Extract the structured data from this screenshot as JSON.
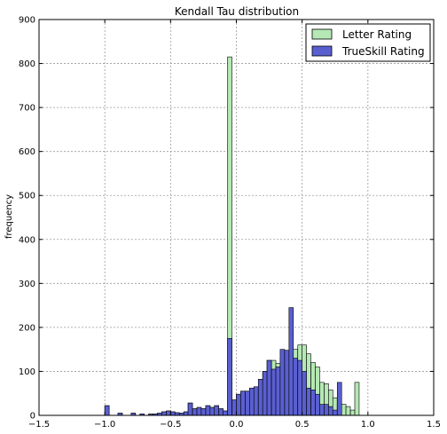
{
  "chart_data": {
    "type": "bar",
    "title": "Kendall Tau distribution",
    "xlabel": "",
    "ylabel": "frequency",
    "xlim": [
      -1.5,
      1.5
    ],
    "ylim": [
      0,
      900
    ],
    "bin_width": 0.0333,
    "x_ticks": [
      -1.5,
      -1.0,
      -0.5,
      0.0,
      0.5,
      1.0,
      1.5
    ],
    "x_tick_labels": [
      "−1.5",
      "−1.0",
      "−0.5",
      "0.0",
      "0.5",
      "1.0",
      "1.5"
    ],
    "y_ticks": [
      0,
      100,
      200,
      300,
      400,
      500,
      600,
      700,
      800,
      900
    ],
    "y_tick_labels": [
      "0",
      "100",
      "200",
      "300",
      "400",
      "500",
      "600",
      "700",
      "800",
      "900"
    ],
    "grid": true,
    "legend_position": "top-right",
    "colors": {
      "letter": "#b5e8b5",
      "trueskill": "#5a5fd0",
      "edge": "#000000"
    },
    "series": [
      {
        "name": "Letter Rating",
        "x": [
          -1.0,
          -0.9,
          -0.8,
          -0.733,
          -0.667,
          -0.633,
          -0.6,
          -0.567,
          -0.533,
          -0.5,
          -0.467,
          -0.433,
          -0.4,
          -0.367,
          -0.333,
          -0.3,
          -0.267,
          -0.233,
          -0.2,
          -0.167,
          -0.133,
          -0.1,
          -0.067,
          -0.033,
          0.0,
          0.033,
          0.067,
          0.1,
          0.133,
          0.167,
          0.2,
          0.233,
          0.267,
          0.3,
          0.333,
          0.367,
          0.4,
          0.433,
          0.467,
          0.5,
          0.533,
          0.567,
          0.6,
          0.633,
          0.667,
          0.7,
          0.733,
          0.767,
          0.8,
          0.833,
          0.867,
          0.9,
          0.933,
          0.967
        ],
        "values": [
          22,
          5,
          5,
          3,
          3,
          3,
          5,
          8,
          10,
          8,
          6,
          5,
          8,
          28,
          15,
          18,
          15,
          22,
          18,
          22,
          15,
          10,
          815,
          35,
          48,
          55,
          55,
          62,
          65,
          82,
          100,
          125,
          125,
          118,
          130,
          140,
          145,
          150,
          160,
          160,
          140,
          120,
          110,
          75,
          72,
          58,
          40,
          25,
          25,
          20,
          12,
          75,
          0,
          0
        ]
      },
      {
        "name": "TrueSkill Rating",
        "x": [
          -1.0,
          -0.9,
          -0.8,
          -0.733,
          -0.667,
          -0.633,
          -0.6,
          -0.567,
          -0.533,
          -0.5,
          -0.467,
          -0.433,
          -0.4,
          -0.367,
          -0.333,
          -0.3,
          -0.267,
          -0.233,
          -0.2,
          -0.167,
          -0.133,
          -0.1,
          -0.067,
          -0.033,
          0.0,
          0.033,
          0.067,
          0.1,
          0.133,
          0.167,
          0.2,
          0.233,
          0.267,
          0.3,
          0.333,
          0.367,
          0.4,
          0.433,
          0.467,
          0.5,
          0.533,
          0.567,
          0.6,
          0.633,
          0.667,
          0.7,
          0.733,
          0.767,
          0.8,
          0.833,
          0.867,
          0.9,
          0.933,
          0.967
        ],
        "values": [
          22,
          5,
          5,
          3,
          3,
          3,
          5,
          8,
          10,
          8,
          6,
          5,
          8,
          28,
          15,
          18,
          15,
          22,
          18,
          22,
          15,
          10,
          175,
          35,
          48,
          55,
          55,
          62,
          65,
          82,
          100,
          125,
          105,
          110,
          150,
          148,
          245,
          130,
          125,
          100,
          62,
          58,
          48,
          25,
          25,
          20,
          12,
          75,
          0,
          0,
          0,
          0,
          0,
          0
        ]
      }
    ]
  }
}
